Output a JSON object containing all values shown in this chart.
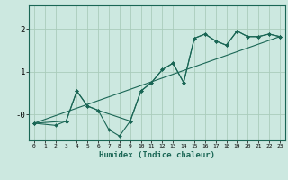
{
  "xlabel": "Humidex (Indice chaleur)",
  "bg_color": "#cce8e0",
  "grid_color": "#aaccbb",
  "line_color": "#1a6655",
  "xlim": [
    -0.5,
    23.5
  ],
  "ylim": [
    -0.6,
    2.55
  ],
  "yticks": [
    0,
    1,
    2
  ],
  "ytick_labels": [
    "-0",
    "1",
    "2"
  ],
  "xticks": [
    0,
    1,
    2,
    3,
    4,
    5,
    6,
    7,
    8,
    9,
    10,
    11,
    12,
    13,
    14,
    15,
    16,
    17,
    18,
    19,
    20,
    21,
    22,
    23
  ],
  "series": [
    {
      "x": [
        0,
        2,
        3,
        4,
        5,
        6,
        7,
        8,
        9,
        10,
        11,
        12,
        13,
        14,
        15,
        16,
        17,
        18,
        19,
        20,
        21,
        22,
        23
      ],
      "y": [
        -0.2,
        -0.25,
        -0.15,
        0.55,
        0.2,
        0.1,
        -0.35,
        -0.5,
        -0.15,
        0.55,
        0.75,
        1.05,
        1.2,
        0.75,
        1.78,
        1.88,
        1.72,
        1.62,
        1.95,
        1.82,
        1.82,
        1.88,
        1.82
      ]
    },
    {
      "x": [
        0,
        23
      ],
      "y": [
        -0.2,
        1.82
      ]
    },
    {
      "x": [
        0,
        3,
        4,
        5,
        6,
        9,
        10,
        11,
        12,
        13,
        14,
        15,
        16,
        17,
        18,
        19,
        20,
        21,
        22,
        23
      ],
      "y": [
        -0.2,
        -0.15,
        0.55,
        0.2,
        0.1,
        -0.15,
        0.55,
        0.75,
        1.05,
        1.2,
        0.75,
        1.78,
        1.88,
        1.72,
        1.62,
        1.95,
        1.82,
        1.82,
        1.88,
        1.82
      ]
    }
  ]
}
